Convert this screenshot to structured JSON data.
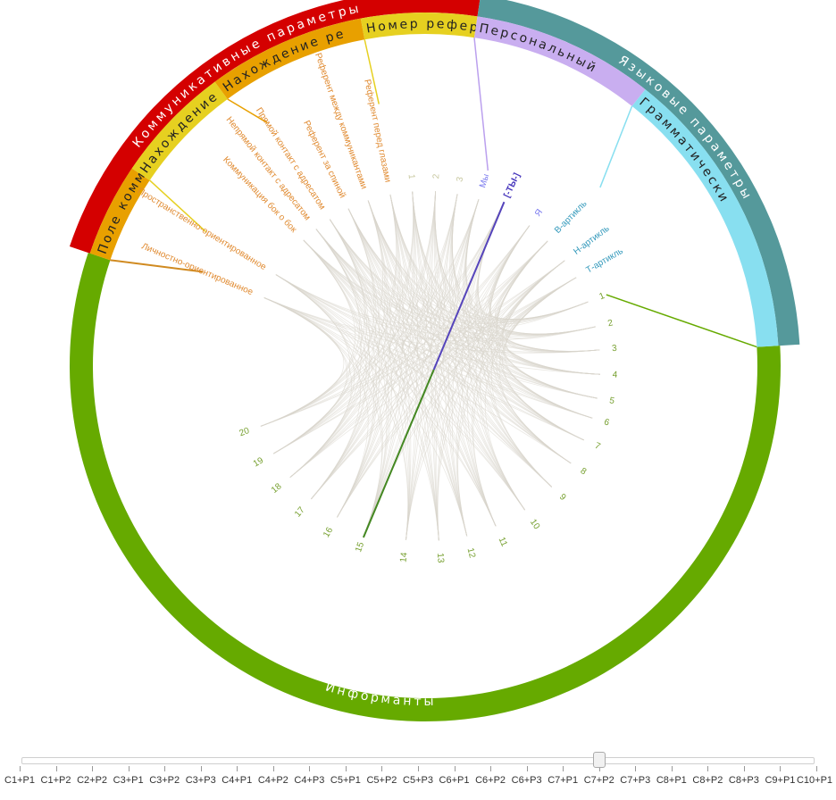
{
  "groups": [
    {
      "id": "comm",
      "label": "Коммуникативные параметры",
      "color": "#d40000",
      "start": 288.6,
      "end": 368.5
    },
    {
      "id": "lang",
      "label": "Языковые параметры",
      "color": "#55999b",
      "start": 8.5,
      "end": 86.7
    },
    {
      "id": "inf",
      "label": "Информанты",
      "color": "#66aa00",
      "start": 86.7,
      "end": 288.6
    }
  ],
  "subgroups": [
    {
      "label": "Поле комм",
      "color": "#e8a000",
      "start": 288.6,
      "end": 304.0
    },
    {
      "label": "Нахождение ад",
      "color": "#e6d020",
      "start": 304.0,
      "end": 323.5
    },
    {
      "label": "Нахождение ре",
      "color": "#e8a000",
      "start": 323.5,
      "end": 349.5
    },
    {
      "label": "Номер референ",
      "color": "#e6d020",
      "start": 349.5,
      "end": 368.5
    },
    {
      "label": "Персональный",
      "color": "#c9aef0",
      "start": 8.5,
      "end": 38.5
    },
    {
      "label": "Грамматически",
      "color": "#88dff0",
      "start": 38.5,
      "end": 86.7
    }
  ],
  "nodes": [
    {
      "label": "Личностно-ориентированное",
      "angle": 293.0,
      "color": "#e08a30",
      "type": "param"
    },
    {
      "label": "Пространственно-ориентированное",
      "angle": 301.5,
      "color": "#e08a30",
      "type": "param"
    },
    {
      "label": "Коммуникация бок о бок",
      "angle": 316.0,
      "color": "#e08a30",
      "type": "param"
    },
    {
      "label": "Непрямой контакт с адресатом",
      "angle": 321.5,
      "color": "#e08a30",
      "type": "param"
    },
    {
      "label": "Прямой контакт с адресатом",
      "angle": 327.0,
      "color": "#e08a30",
      "type": "param"
    },
    {
      "label": "Референт за спиной",
      "angle": 334.0,
      "color": "#e08a30",
      "type": "param"
    },
    {
      "label": "Референт между коммуникантами",
      "angle": 341.0,
      "color": "#e08a30",
      "type": "param"
    },
    {
      "label": "Референт перед глазами",
      "angle": 348.5,
      "color": "#e08a30",
      "type": "param"
    },
    {
      "label": "1",
      "angle": 355.8,
      "color": "#c8c8a0",
      "type": "param"
    },
    {
      "label": "2",
      "angle": 3.4,
      "color": "#c8c8a0",
      "type": "param"
    },
    {
      "label": "3",
      "angle": 10.6,
      "color": "#c8c8a0",
      "type": "param"
    },
    {
      "label": "Мы",
      "angle": 17.8,
      "color": "#7777ee",
      "type": "param"
    },
    {
      "label": "[-ТЫ-]",
      "angle": 25.7,
      "color": "#4433bb",
      "type": "param"
    },
    {
      "label": "Я",
      "angle": 36.6,
      "color": "#7777ee",
      "type": "param"
    },
    {
      "label": "В-артикль",
      "angle": 44.4,
      "color": "#3399bb",
      "type": "param"
    },
    {
      "label": "Н-артикль",
      "angle": 52.9,
      "color": "#3399bb",
      "type": "param"
    },
    {
      "label": "Т-артикль",
      "angle": 59.6,
      "color": "#3399bb",
      "type": "param"
    },
    {
      "label": "1",
      "angle": 68.5,
      "color": "#77a030",
      "type": "inf"
    },
    {
      "label": "2",
      "angle": 77.0,
      "color": "#77a030",
      "type": "inf"
    },
    {
      "label": "3",
      "angle": 84.7,
      "color": "#77a030",
      "type": "inf"
    },
    {
      "label": "4",
      "angle": 92.7,
      "color": "#77a030",
      "type": "inf"
    },
    {
      "label": "5",
      "angle": 100.6,
      "color": "#77a030",
      "type": "inf"
    },
    {
      "label": "6",
      "angle": 107.3,
      "color": "#77a030",
      "type": "inf"
    },
    {
      "label": "7",
      "angle": 115.0,
      "color": "#77a030",
      "type": "inf"
    },
    {
      "label": "8",
      "angle": 123.7,
      "color": "#77a030",
      "type": "inf"
    },
    {
      "label": "9",
      "angle": 133.7,
      "color": "#77a030",
      "type": "inf"
    },
    {
      "label": "10",
      "angle": 145.3,
      "color": "#77a030",
      "type": "inf"
    },
    {
      "label": "11",
      "angle": 156.2,
      "color": "#77a030",
      "type": "inf"
    },
    {
      "label": "12",
      "angle": 166.2,
      "color": "#77a030",
      "type": "inf"
    },
    {
      "label": "13",
      "angle": 175.5,
      "color": "#77a030",
      "type": "inf"
    },
    {
      "label": "14",
      "angle": 186.3,
      "color": "#77a030",
      "type": "inf"
    },
    {
      "label": "15",
      "angle": 199.8,
      "color": "#77a030",
      "type": "inf"
    },
    {
      "label": "16",
      "angle": 210.2,
      "color": "#77a030",
      "type": "inf"
    },
    {
      "label": "17",
      "angle": 220.6,
      "color": "#77a030",
      "type": "inf"
    },
    {
      "label": "18",
      "angle": 230.5,
      "color": "#77a030",
      "type": "inf"
    },
    {
      "label": "19",
      "angle": 240.0,
      "color": "#77a030",
      "type": "inf"
    },
    {
      "label": "20",
      "angle": 249.9,
      "color": "#77a030",
      "type": "inf"
    }
  ],
  "highlight": {
    "from": "[-ТЫ-]",
    "to": "15",
    "color_param": "#5544bb",
    "color_inf": "#448822"
  },
  "slider": {
    "labels": [
      "C1+P1",
      "C1+P2",
      "C2+P2",
      "C3+P1",
      "C3+P2",
      "C3+P3",
      "C4+P1",
      "C4+P2",
      "C4+P3",
      "C5+P1",
      "C5+P2",
      "C5+P3",
      "C6+P1",
      "C6+P2",
      "C6+P3",
      "C7+P1",
      "C7+P2",
      "C7+P3",
      "C8+P1",
      "C8+P2",
      "C8+P3",
      "C9+P1",
      "C10+P1"
    ],
    "selected": "C7+P2"
  }
}
